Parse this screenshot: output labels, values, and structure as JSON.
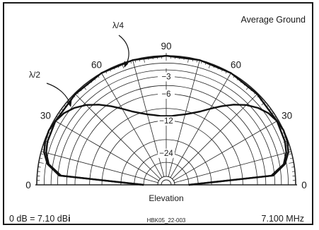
{
  "chart_data": {
    "type": "polar-elevation",
    "annotations": {
      "top_right": "Average Ground",
      "xlabel": "Elevation",
      "bottom_left_prefix": "0 dB = 7.10 dB",
      "bottom_left_suffix": "i",
      "bottom_center": "HBK05_22-003",
      "bottom_right": "7.100 MHz"
    },
    "angle_labels": [
      {
        "text": "0",
        "angle": 0,
        "side": "left"
      },
      {
        "text": "30",
        "angle": 30,
        "side": "left"
      },
      {
        "text": "60",
        "angle": 60,
        "side": "left"
      },
      {
        "text": "90",
        "angle": 90,
        "side": "top"
      },
      {
        "text": "60",
        "angle": 120,
        "side": "right"
      },
      {
        "text": "30",
        "angle": 150,
        "side": "right"
      },
      {
        "text": "0",
        "angle": 180,
        "side": "right"
      }
    ],
    "ring_labels_db": [
      -3,
      -6,
      -12,
      -24
    ],
    "ring_label_texts": [
      "−3",
      "−6",
      "−12",
      "−24"
    ],
    "series": [
      {
        "name": "λ/4",
        "points": [
          [
            0,
            -30
          ],
          [
            5,
            -3.5
          ],
          [
            10,
            -1.4
          ],
          [
            15,
            -0.7
          ],
          [
            20,
            -0.4
          ],
          [
            30,
            -0.2
          ],
          [
            45,
            -0.1
          ],
          [
            60,
            0
          ],
          [
            75,
            0
          ],
          [
            90,
            0
          ]
        ]
      },
      {
        "name": "λ/2",
        "points": [
          [
            0,
            -30
          ],
          [
            5,
            -3.2
          ],
          [
            10,
            -1.2
          ],
          [
            15,
            -0.4
          ],
          [
            20,
            -0.1
          ],
          [
            25,
            0
          ],
          [
            30,
            -0.2
          ],
          [
            35,
            -0.6
          ],
          [
            40,
            -1.3
          ],
          [
            45,
            -2.3
          ],
          [
            50,
            -3.6
          ],
          [
            55,
            -5.1
          ],
          [
            60,
            -6.6
          ],
          [
            65,
            -8
          ],
          [
            70,
            -9
          ],
          [
            75,
            -9.8
          ],
          [
            80,
            -10.3
          ],
          [
            85,
            -10.7
          ],
          [
            90,
            -10.8
          ]
        ]
      }
    ]
  }
}
